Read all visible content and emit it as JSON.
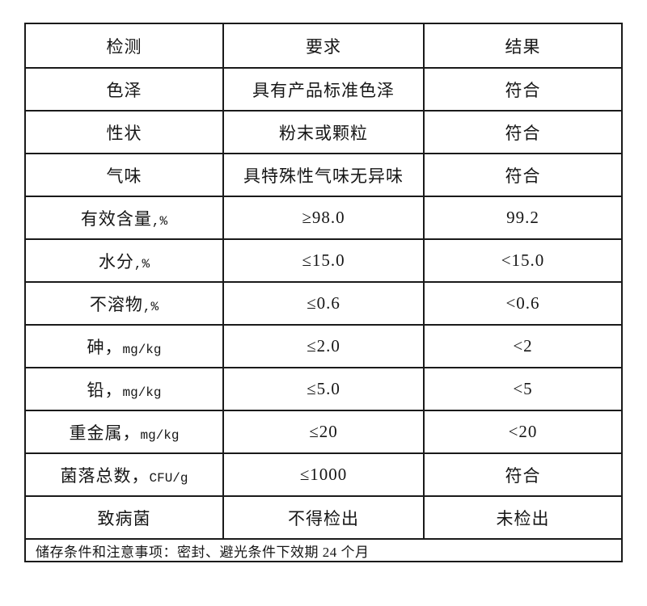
{
  "page": {
    "background_color": "#ffffff",
    "border_color": "#1a1a1a",
    "text_color": "#161616"
  },
  "table": {
    "header": {
      "test": "检测",
      "requirement": "要求",
      "result": "结果"
    },
    "rows": [
      {
        "test": "色泽",
        "suffix": "",
        "requirement": "具有产品标准色泽",
        "result": "符合"
      },
      {
        "test": "性状",
        "suffix": "",
        "requirement": "粉末或颗粒",
        "result": "符合"
      },
      {
        "test": "气味",
        "suffix": "",
        "requirement": "具特殊性气味无异味",
        "result": "符合"
      },
      {
        "test": "有效含量",
        "suffix": ",%",
        "requirement": "≥98.0",
        "result": "99.2"
      },
      {
        "test": "水分",
        "suffix": ",%",
        "requirement": "≤15.0",
        "result": "<15.0"
      },
      {
        "test": "不溶物",
        "suffix": ",%",
        "requirement": "≤0.6",
        "result": "<0.6"
      },
      {
        "test": "砷，",
        "suffix": "mg/kg",
        "requirement": "≤2.0",
        "result": "<2"
      },
      {
        "test": "铅，",
        "suffix": "mg/kg",
        "requirement": "≤5.0",
        "result": "<5"
      },
      {
        "test": "重金属，",
        "suffix": "mg/kg",
        "requirement": "≤20",
        "result": "<20"
      },
      {
        "test": "菌落总数，",
        "suffix": "CFU/g",
        "requirement": "≤1000",
        "result": "符合"
      },
      {
        "test": "致病菌",
        "suffix": "",
        "requirement": "不得检出",
        "result": "未检出"
      }
    ],
    "footer": "储存条件和注意事项：密封、避光条件下效期 24 个月"
  }
}
